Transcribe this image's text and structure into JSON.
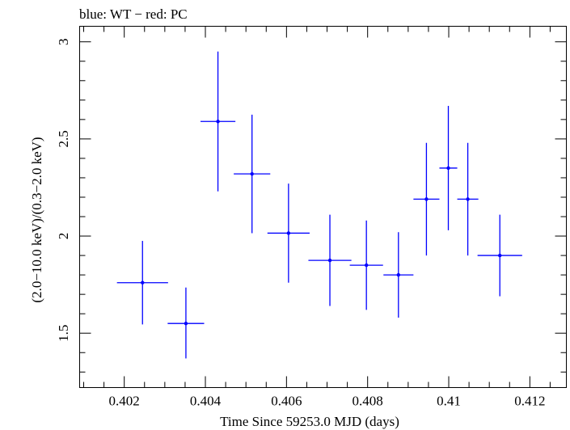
{
  "chart_data": {
    "type": "scatter",
    "title": "blue: WT − red: PC",
    "xlabel": "Time Since 59253.0 MJD (days)",
    "ylabel": "(2.0−10.0 keV)/(0.3−2.0 keV)",
    "xlim": [
      0.4009,
      0.4129
    ],
    "ylim": [
      1.22,
      3.08
    ],
    "x_ticks": [
      0.402,
      0.404,
      0.406,
      0.408,
      0.41,
      0.412
    ],
    "x_tick_labels": [
      "0.402",
      "0.404",
      "0.406",
      "0.408",
      "0.41",
      "0.412"
    ],
    "y_ticks": [
      1.5,
      2,
      2.5,
      3
    ],
    "y_tick_labels": [
      "1.5",
      "2",
      "2.5",
      "3"
    ],
    "grid": false,
    "series": [
      {
        "color": "#0000ff",
        "points": [
          {
            "x": 0.40245,
            "xerr": 0.00063,
            "y": 1.76,
            "yerr_low": 0.215,
            "yerr_high": 0.215
          },
          {
            "x": 0.40352,
            "xerr": 0.00045,
            "y": 1.55,
            "yerr_low": 0.18,
            "yerr_high": 0.185
          },
          {
            "x": 0.40431,
            "xerr": 0.00043,
            "y": 2.59,
            "yerr_low": 0.36,
            "yerr_high": 0.36
          },
          {
            "x": 0.40515,
            "xerr": 0.00045,
            "y": 2.32,
            "yerr_low": 0.305,
            "yerr_high": 0.305
          },
          {
            "x": 0.40605,
            "xerr": 0.00052,
            "y": 2.015,
            "yerr_low": 0.255,
            "yerr_high": 0.255
          },
          {
            "x": 0.40707,
            "xerr": 0.00053,
            "y": 1.875,
            "yerr_low": 0.235,
            "yerr_high": 0.235
          },
          {
            "x": 0.40797,
            "xerr": 0.00041,
            "y": 1.85,
            "yerr_low": 0.23,
            "yerr_high": 0.23
          },
          {
            "x": 0.40876,
            "xerr": 0.00037,
            "y": 1.8,
            "yerr_low": 0.22,
            "yerr_high": 0.22
          },
          {
            "x": 0.40945,
            "xerr": 0.00032,
            "y": 2.19,
            "yerr_low": 0.29,
            "yerr_high": 0.29
          },
          {
            "x": 0.40999,
            "xerr": 0.00022,
            "y": 2.35,
            "yerr_low": 0.32,
            "yerr_high": 0.32
          },
          {
            "x": 0.41047,
            "xerr": 0.00026,
            "y": 2.19,
            "yerr_low": 0.29,
            "yerr_high": 0.29
          },
          {
            "x": 0.41126,
            "xerr": 0.00055,
            "y": 1.9,
            "yerr_low": 0.21,
            "yerr_high": 0.21
          }
        ]
      }
    ]
  }
}
